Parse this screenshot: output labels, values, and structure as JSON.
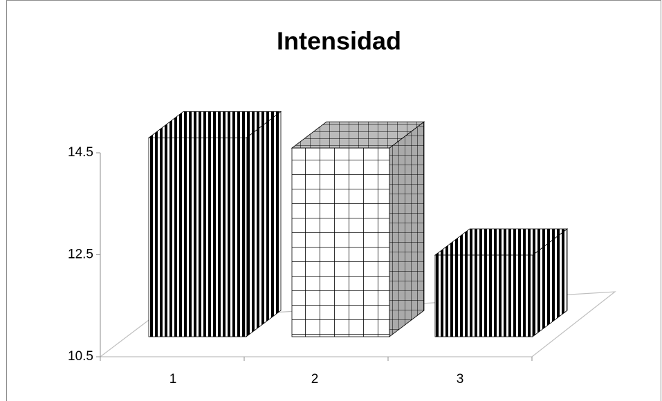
{
  "chart_data": {
    "type": "bar3d",
    "title": "Intensidad",
    "categories": [
      "1",
      "2",
      "3"
    ],
    "values": [
      14.4,
      14.2,
      12.1
    ],
    "colors": [
      "#1f3a73",
      "#000000",
      "#1f3a73"
    ],
    "ylim": [
      10.5,
      14.5
    ],
    "yticks": [
      10.5,
      12.5,
      14.5
    ],
    "grid": false
  }
}
